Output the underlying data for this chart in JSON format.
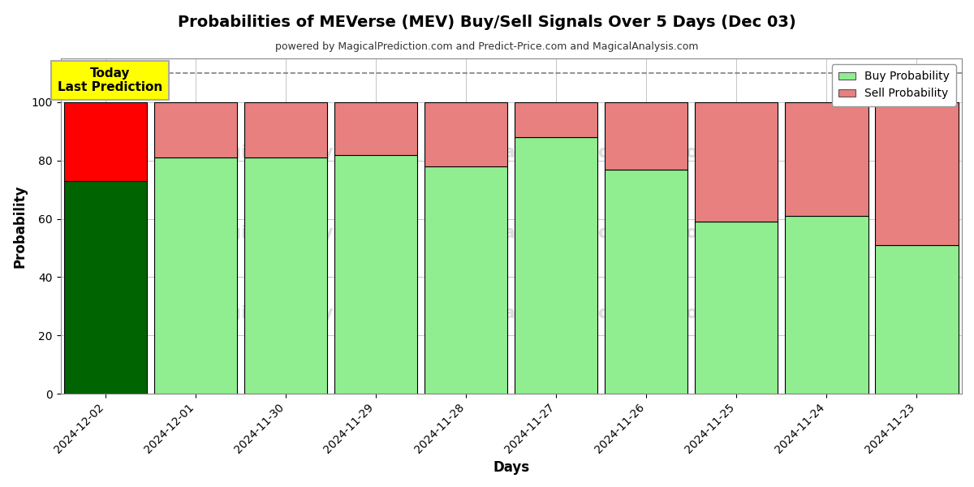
{
  "title": "Probabilities of MEVerse (MEV) Buy/Sell Signals Over 5 Days (Dec 03)",
  "subtitle": "powered by MagicalPrediction.com and Predict-Price.com and MagicalAnalysis.com",
  "xlabel": "Days",
  "ylabel": "Probability",
  "dates": [
    "2024-12-02",
    "2024-12-01",
    "2024-11-30",
    "2024-11-29",
    "2024-11-28",
    "2024-11-27",
    "2024-11-26",
    "2024-11-25",
    "2024-11-24",
    "2024-11-23"
  ],
  "buy_values": [
    73,
    81,
    81,
    82,
    78,
    88,
    77,
    59,
    61,
    51
  ],
  "sell_values": [
    27,
    19,
    19,
    18,
    22,
    12,
    23,
    41,
    39,
    49
  ],
  "today_bar_buy_color": "#006400",
  "today_bar_sell_color": "#FF0000",
  "other_bar_buy_color": "#90EE90",
  "other_bar_sell_color": "#E88080",
  "bar_edge_color": "#000000",
  "today_label_bg": "#FFFF00",
  "today_label_text": "Today\nLast Prediction",
  "dashed_line_y": 110,
  "ylim": [
    0,
    115
  ],
  "yticks": [
    0,
    20,
    40,
    60,
    80,
    100
  ],
  "legend_buy_color": "#90EE90",
  "legend_sell_color": "#E88080",
  "bg_color": "#FFFFFF",
  "grid_color": "#BBBBBB",
  "watermark_color": "#DDDDDD",
  "bar_width": 0.92
}
